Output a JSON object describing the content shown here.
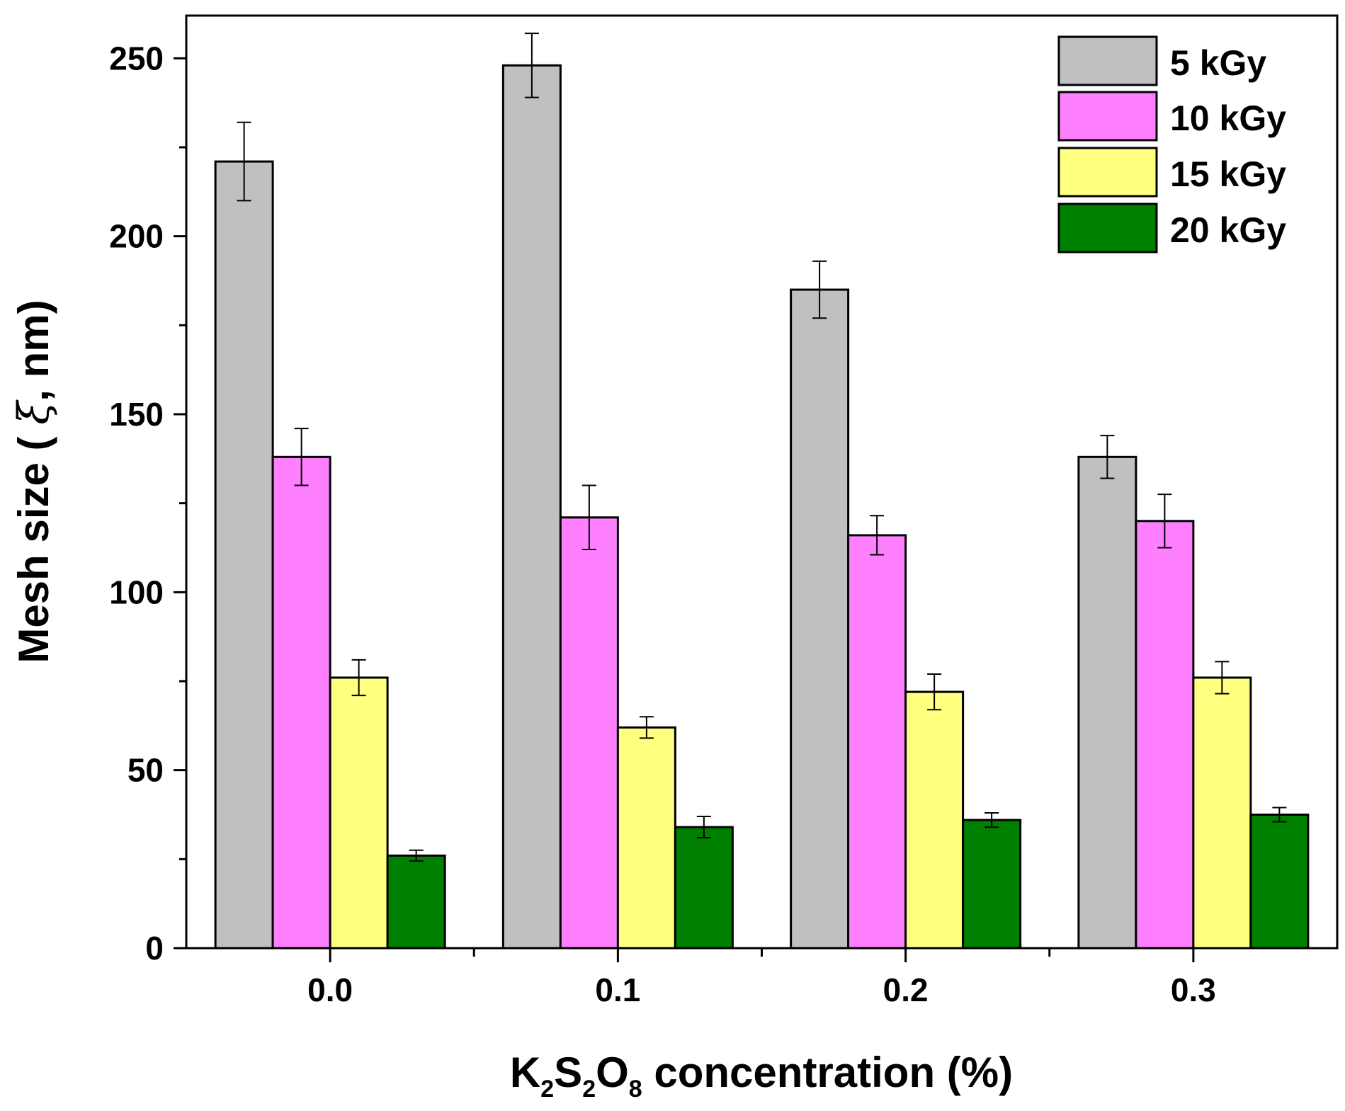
{
  "chart_data": {
    "type": "bar",
    "categories": [
      "0.0",
      "0.1",
      "0.2",
      "0.3"
    ],
    "series": [
      {
        "name": "5 kGy",
        "color": "#c0c0c0",
        "values": [
          221,
          248,
          185,
          138
        ],
        "errors": [
          11,
          9,
          8,
          6
        ]
      },
      {
        "name": "10 kGy",
        "color": "#ff80ff",
        "values": [
          138,
          121,
          116,
          120
        ],
        "errors": [
          8,
          9,
          5.5,
          7.5
        ]
      },
      {
        "name": "15 kGy",
        "color": "#ffff80",
        "values": [
          76,
          62,
          72,
          76
        ],
        "errors": [
          5,
          3,
          5,
          4.5
        ]
      },
      {
        "name": "20 kGy",
        "color": "#008000",
        "values": [
          26,
          34,
          36,
          37.5
        ],
        "errors": [
          1.5,
          3,
          2,
          2
        ]
      }
    ],
    "ylim": [
      0,
      262
    ],
    "yticks": [
      0,
      50,
      100,
      150,
      200,
      250
    ],
    "ytick_labels": [
      "0",
      "50",
      "100",
      "150",
      "200",
      "250"
    ],
    "ylabel": {
      "prefix": "Mesh size ( ",
      "symbol": "ξ",
      "suffix": ", nm)"
    },
    "xlabel": {
      "parts": [
        "K",
        "2",
        "S",
        "2",
        "O",
        "8",
        " concentration (%)"
      ]
    },
    "title": "",
    "legend_position": "top-right",
    "grid": false
  }
}
